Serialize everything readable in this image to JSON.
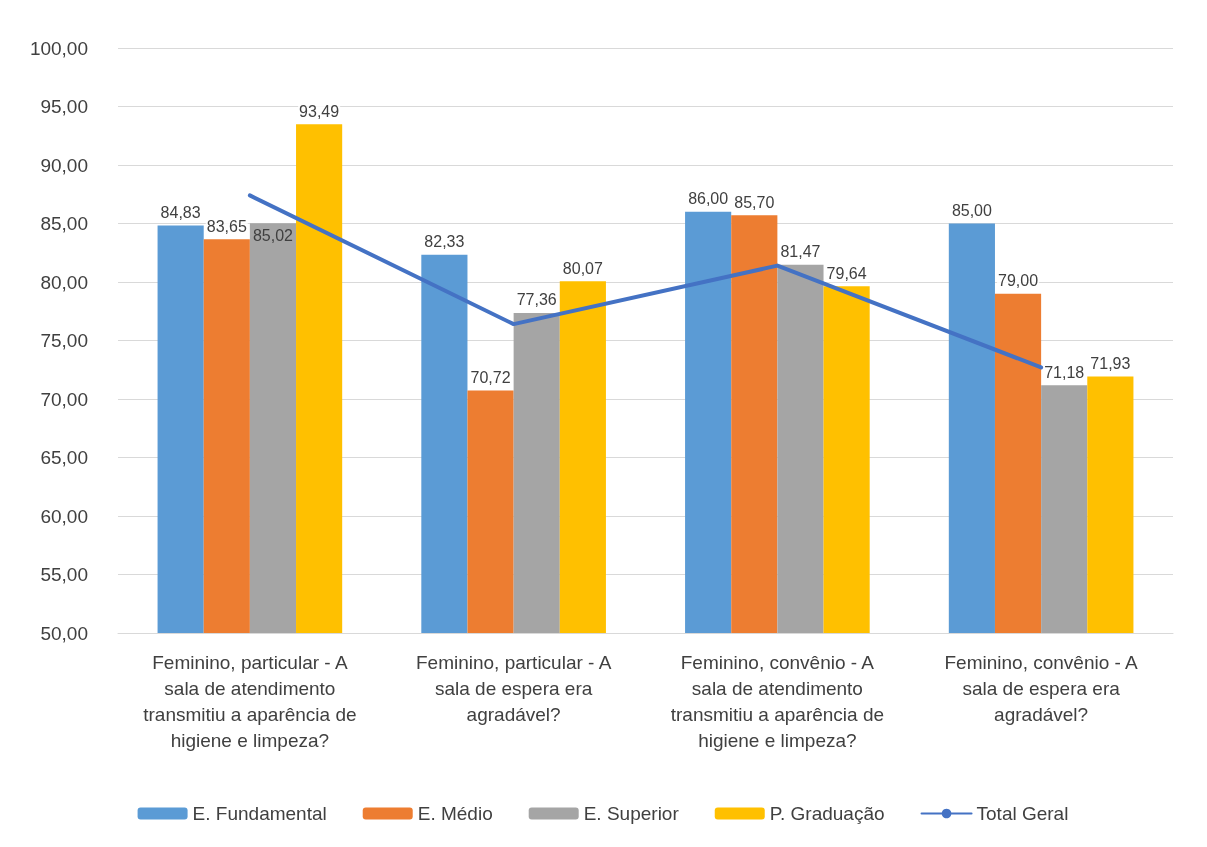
{
  "chart_data": {
    "type": "bar",
    "categories": [
      "Feminino, particular - A sala de atendimento transmitiu a aparência de higiene e limpeza?",
      "Feminino, particular - A sala de espera era agradável?",
      "Feminino, convênio - A sala de atendimento transmitiu a aparência de higiene e limpeza?",
      "Feminino, convênio - A sala de espera era agradável?"
    ],
    "series": [
      {
        "name": "E. Fundamental",
        "color": "#5b9bd5",
        "values": [
          84.83,
          82.33,
          86.0,
          85.0
        ],
        "value_labels": [
          "84,83",
          "82,33",
          "86,00",
          "85,00"
        ]
      },
      {
        "name": "E. Médio",
        "color": "#ed7d31",
        "values": [
          83.65,
          70.72,
          85.7,
          79.0
        ],
        "value_labels": [
          "83,65",
          "70,72",
          "85,70",
          "79,00"
        ]
      },
      {
        "name": "E. Superior",
        "color": "#a5a5a5",
        "values": [
          85.02,
          77.36,
          81.47,
          71.18
        ],
        "value_labels": [
          "85,02",
          "77,36",
          "81,47",
          "71,18"
        ]
      },
      {
        "name": "P. Graduação",
        "color": "#ffc000",
        "values": [
          93.49,
          80.07,
          79.64,
          71.93
        ],
        "value_labels": [
          "93,49",
          "80,07",
          "79,64",
          "71,93"
        ]
      },
      {
        "name": "Total Geral",
        "type": "line",
        "color": "#4472c4",
        "values": [
          87.4,
          76.4,
          81.4,
          72.7
        ]
      }
    ],
    "ylim": [
      50,
      100
    ],
    "yticks": [
      {
        "value": 50,
        "label": "50,00"
      },
      {
        "value": 55,
        "label": "55,00"
      },
      {
        "value": 60,
        "label": "60,00"
      },
      {
        "value": 65,
        "label": "65,00"
      },
      {
        "value": 70,
        "label": "70,00"
      },
      {
        "value": 75,
        "label": "75,00"
      },
      {
        "value": 80,
        "label": "80,00"
      },
      {
        "value": 85,
        "label": "85,00"
      },
      {
        "value": 90,
        "label": "90,00"
      },
      {
        "value": 95,
        "label": "95,00"
      },
      {
        "value": 100,
        "label": "100,00"
      }
    ],
    "grid": "y",
    "legend": "bottom",
    "marker": "none"
  }
}
